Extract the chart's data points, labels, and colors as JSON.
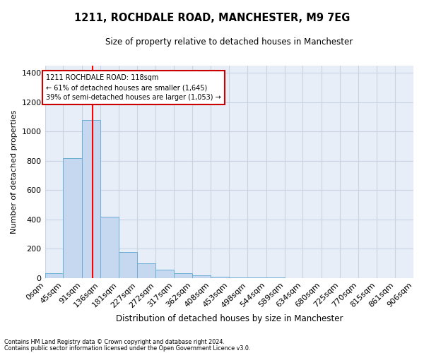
{
  "title": "1211, ROCHDALE ROAD, MANCHESTER, M9 7EG",
  "subtitle": "Size of property relative to detached houses in Manchester",
  "xlabel": "Distribution of detached houses by size in Manchester",
  "ylabel": "Number of detached properties",
  "footnote1": "Contains HM Land Registry data © Crown copyright and database right 2024.",
  "footnote2": "Contains public sector information licensed under the Open Government Licence v3.0.",
  "bin_edges": [
    0,
    45,
    91,
    136,
    181,
    227,
    272,
    317,
    362,
    408,
    453,
    498,
    544,
    589,
    634,
    680,
    725,
    770,
    815,
    861,
    906
  ],
  "bar_heights": [
    30,
    820,
    1080,
    420,
    175,
    100,
    55,
    30,
    20,
    10,
    5,
    3,
    2,
    1,
    1,
    0,
    0,
    0,
    0,
    0
  ],
  "bar_color": "#c5d8ef",
  "bar_edge_color": "#6baed6",
  "red_line_x": 118,
  "ylim": [
    0,
    1450
  ],
  "yticks": [
    0,
    200,
    400,
    600,
    800,
    1000,
    1200,
    1400
  ],
  "annotation_title": "1211 ROCHDALE ROAD: 118sqm",
  "annotation_line1": "← 61% of detached houses are smaller (1,645)",
  "annotation_line2": "39% of semi-detached houses are larger (1,053) →",
  "annotation_box_facecolor": "#ffffff",
  "annotation_box_edgecolor": "#cc0000",
  "grid_color": "#c8d4e3",
  "background_color": "#e8eef7",
  "figure_facecolor": "#ffffff"
}
